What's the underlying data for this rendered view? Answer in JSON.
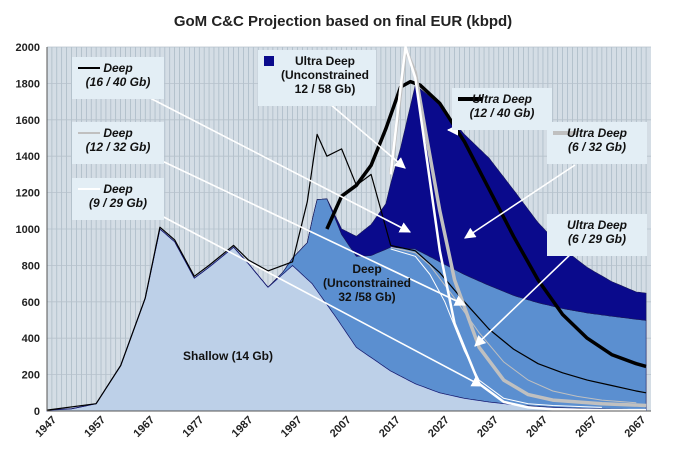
{
  "chart_data": {
    "type": "area",
    "title": "GoM C&C Projection based on final EUR (kbpd)",
    "xlabel": "",
    "ylabel": "",
    "xlim": [
      1947,
      2070
    ],
    "ylim": [
      0,
      2000
    ],
    "x_ticks": [
      "1947",
      "1957",
      "1967",
      "1977",
      "1987",
      "1997",
      "2007",
      "2017",
      "2027",
      "2037",
      "2047",
      "2057",
      "2067"
    ],
    "y_ticks": [
      "0",
      "200",
      "400",
      "600",
      "800",
      "1000",
      "1200",
      "1400",
      "1600",
      "1800",
      "2000"
    ],
    "grid": true,
    "colors": {
      "shallow": "#bdd0e8",
      "deep": "#5b8fd0",
      "ultra_deep": "#0a0a8c",
      "background": "#d4dde5",
      "black": "#000000",
      "light_grey": "#c0c0c0",
      "white": "#ffffff"
    },
    "stacked_areas": [
      {
        "name": "Shallow (14 Gb)",
        "x": [
          1947,
          1952,
          1957,
          1962,
          1967,
          1970,
          1973,
          1977,
          1980,
          1985,
          1988,
          1992,
          1997,
          2001,
          2006,
          2010,
          2017,
          2022,
          2027,
          2032,
          2037,
          2042,
          2047,
          2052,
          2057,
          2062,
          2067,
          2069
        ],
        "values": [
          5,
          12,
          40,
          250,
          620,
          1000,
          930,
          730,
          790,
          900,
          810,
          680,
          800,
          700,
          510,
          350,
          220,
          150,
          100,
          70,
          50,
          35,
          25,
          18,
          14,
          11,
          9,
          8
        ]
      },
      {
        "name": "Deep (Unconstrained 32 /58 Gb)",
        "x": [
          1947,
          1992,
          1995,
          1997,
          2000,
          2002,
          2004,
          2007,
          2010,
          2013,
          2017,
          2022,
          2027,
          2032,
          2037,
          2042,
          2047,
          2052,
          2057,
          2062,
          2067,
          2069
        ],
        "values": [
          0,
          0,
          10,
          40,
          200,
          500,
          580,
          500,
          500,
          560,
          680,
          740,
          720,
          680,
          640,
          600,
          570,
          545,
          525,
          510,
          495,
          490
        ]
      },
      {
        "name": "Ultra Deep (Unconstrained 12 / 58 Gb)",
        "x": [
          1947,
          2004,
          2007,
          2010,
          2013,
          2016,
          2019,
          2022,
          2025,
          2027,
          2032,
          2037,
          2042,
          2047,
          2052,
          2057,
          2062,
          2067,
          2069
        ],
        "values": [
          0,
          0,
          30,
          110,
          170,
          250,
          550,
          900,
          880,
          860,
          770,
          700,
          580,
          440,
          330,
          250,
          190,
          150,
          150
        ]
      }
    ],
    "lines": [
      {
        "name": "Deep (16 / 40 Gb)",
        "color": "#000000",
        "x": [
          1947,
          1957,
          1962,
          1967,
          1970,
          1973,
          1977,
          1980,
          1985,
          1988,
          1992,
          1997,
          2000,
          2002,
          2004,
          2007,
          2010,
          2013,
          2017,
          2022,
          2027,
          2032,
          2037,
          2042,
          2047,
          2052,
          2057,
          2062,
          2067,
          2069
        ],
        "values": [
          5,
          40,
          250,
          620,
          1010,
          940,
          740,
          800,
          910,
          830,
          770,
          820,
          1150,
          1520,
          1400,
          1440,
          1240,
          1300,
          910,
          880,
          760,
          600,
          450,
          340,
          260,
          210,
          170,
          140,
          110,
          100
        ]
      },
      {
        "name": "Deep (12 / 32 Gb)",
        "color": "#c0c0c0",
        "x": [
          2017,
          2022,
          2025,
          2030,
          2035,
          2040,
          2045,
          2050,
          2055,
          2060,
          2067
        ],
        "values": [
          900,
          870,
          800,
          620,
          430,
          270,
          170,
          110,
          80,
          60,
          45
        ]
      },
      {
        "name": "Deep (9 / 29 Gb)",
        "color": "#ffffff",
        "x": [
          2017,
          2022,
          2025,
          2028,
          2032,
          2035,
          2040,
          2045,
          2050,
          2060
        ],
        "values": [
          890,
          850,
          750,
          600,
          330,
          170,
          70,
          40,
          30,
          20
        ]
      },
      {
        "name": "Ultra Deep (12 / 40 Gb)",
        "color": "#000000",
        "x": [
          2004,
          2007,
          2010,
          2013,
          2016,
          2019,
          2021,
          2023,
          2027,
          2032,
          2037,
          2042,
          2047,
          2052,
          2057,
          2062,
          2067,
          2069
        ],
        "values": [
          1000,
          1180,
          1240,
          1350,
          1550,
          1780,
          1810,
          1790,
          1690,
          1480,
          1220,
          960,
          720,
          530,
          400,
          310,
          260,
          245
        ]
      },
      {
        "name": "Ultra Deep (6 / 32 Gb)",
        "color": "#c0c0c0",
        "x": [
          2017,
          2019,
          2020,
          2022,
          2024,
          2027,
          2030,
          2035,
          2040,
          2045,
          2050,
          2060,
          2069
        ],
        "values": [
          1300,
          1750,
          1990,
          1860,
          1550,
          1100,
          720,
          350,
          170,
          90,
          60,
          40,
          30
        ]
      },
      {
        "name": "Ultra Deep (6 / 29 Gb)",
        "color": "#ffffff",
        "x": [
          2017,
          2019,
          2020,
          2022,
          2024,
          2027,
          2030,
          2035,
          2040,
          2045,
          2050,
          2060,
          2069
        ],
        "values": [
          1300,
          1780,
          2000,
          1830,
          1450,
          880,
          480,
          150,
          50,
          20,
          10,
          5,
          5
        ]
      }
    ],
    "annotations": [
      {
        "id": "deep-16-40",
        "lines": [
          "Deep",
          "(16 / 40 Gb)"
        ],
        "italic": true,
        "marker": "line",
        "marker_color": "#000000"
      },
      {
        "id": "deep-12-32",
        "lines": [
          "Deep",
          "(12 / 32 Gb)"
        ],
        "italic": true,
        "marker": "line",
        "marker_color": "#c0c0c0"
      },
      {
        "id": "deep-9-29",
        "lines": [
          "Deep",
          "(9 / 29 Gb)"
        ],
        "italic": true,
        "marker": "line",
        "marker_color": "#ffffff"
      },
      {
        "id": "ultra-deep-unconstrained",
        "lines": [
          "Ultra Deep",
          "(Unconstrained",
          "12 / 58 Gb)"
        ],
        "italic": false,
        "marker": "square",
        "marker_color": "#0a0a8c"
      },
      {
        "id": "ultra-deep-12-40",
        "lines": [
          "Ultra Deep",
          "(12 / 40 Gb)"
        ],
        "italic": true,
        "marker": "thick-line",
        "marker_color": "#000000"
      },
      {
        "id": "ultra-deep-6-32",
        "lines": [
          "Ultra Deep",
          "(6 / 32 Gb)"
        ],
        "italic": true,
        "marker": "thick-line",
        "marker_color": "#c0c0c0"
      },
      {
        "id": "ultra-deep-6-29",
        "lines": [
          "Ultra Deep",
          "(6 / 29 Gb)"
        ],
        "italic": true,
        "marker": "none",
        "marker_color": ""
      },
      {
        "id": "deep-unconstrained",
        "lines": [
          "Deep",
          "(Unconstrained",
          "32 /58 Gb)"
        ],
        "italic": false,
        "marker": "none",
        "marker_color": ""
      },
      {
        "id": "shallow",
        "lines": [
          "Shallow (14 Gb)"
        ],
        "italic": false,
        "marker": "none",
        "marker_color": ""
      }
    ]
  }
}
